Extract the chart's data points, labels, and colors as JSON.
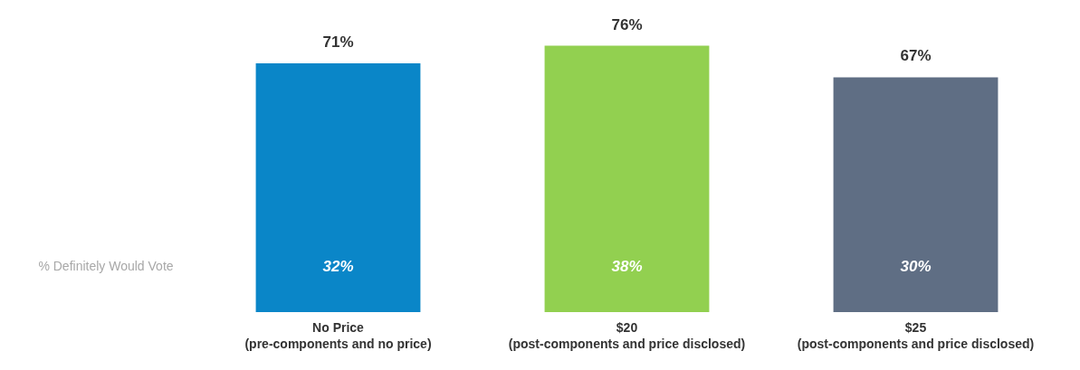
{
  "chart_data": {
    "type": "bar",
    "categories": [
      "No Price\n(pre-components and no price)",
      "$20\n(post-components and price disclosed)",
      "$25\n(post-components and price disclosed)"
    ],
    "values": [
      71,
      76,
      67
    ],
    "colors": [
      "#0a86c8",
      "#92d050",
      "#5f6e84"
    ],
    "value_labels": [
      "71%",
      "76%",
      "67%"
    ],
    "tick_labels": "x",
    "grid": false,
    "annotations": [
      "32%",
      "38%",
      "30%",
      "% Definitely Would Vote"
    ]
  }
}
